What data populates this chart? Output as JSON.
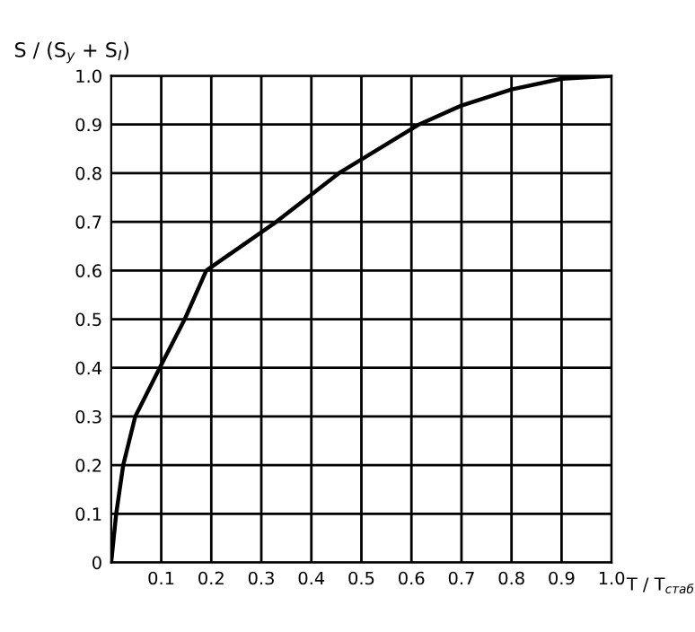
{
  "chart_data": {
    "type": "line",
    "ylabel": "S / (S$_{y}$ + S$_{I}$)",
    "xlabel": "T / T$_{стаб}$",
    "series": [
      {
        "color": "#000000",
        "x": [
          0,
          0.01,
          0.024,
          0.048,
          0.097,
          0.147,
          0.19,
          0.33,
          0.455,
          0.615,
          0.7,
          0.8,
          0.9,
          1.0
        ],
        "values": [
          0,
          0.1,
          0.2,
          0.3,
          0.4,
          0.5,
          0.6,
          0.7,
          0.8,
          0.9,
          0.939,
          0.972,
          0.994,
          1.0
        ]
      }
    ],
    "xlim": [
      0,
      1.0
    ],
    "ylim": [
      0,
      1.0
    ],
    "xticks": [
      {
        "value": 0.1,
        "label": "0.1"
      },
      {
        "value": 0.2,
        "label": "0.2"
      },
      {
        "value": 0.3,
        "label": "0.3"
      },
      {
        "value": 0.4,
        "label": "0.4"
      },
      {
        "value": 0.5,
        "label": "0.5"
      },
      {
        "value": 0.6,
        "label": "0.6"
      },
      {
        "value": 0.7,
        "label": "0.7"
      },
      {
        "value": 0.8,
        "label": "0.8"
      },
      {
        "value": 0.9,
        "label": "0.9"
      },
      {
        "value": 1.0,
        "label": "1.0"
      }
    ],
    "yticks": [
      0,
      0.1,
      0.2,
      0.3,
      0.4,
      0.5,
      0.6,
      0.7,
      0.8,
      0.9,
      {
        "value": 1.0,
        "label": "1.0"
      }
    ],
    "grid": true,
    "marker": "none",
    "line_style": "solid"
  }
}
